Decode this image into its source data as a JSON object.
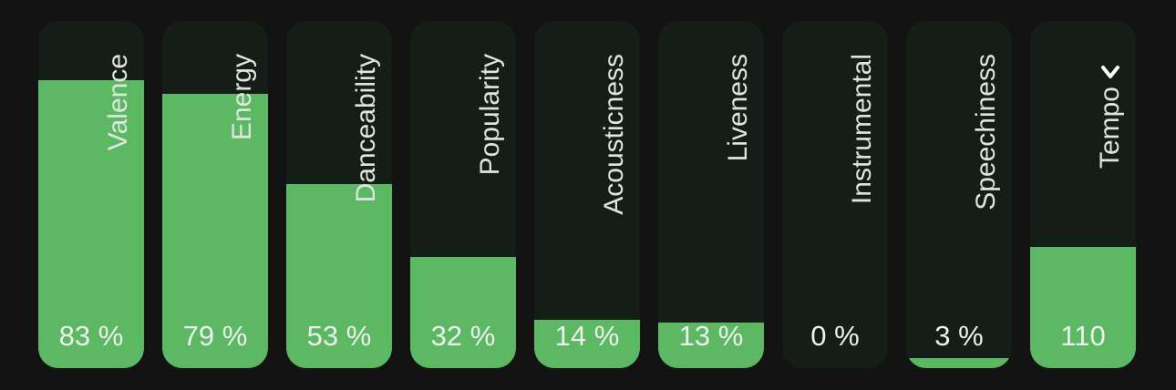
{
  "colors": {
    "page_background": "#131313",
    "bar_track": "#141e16",
    "bar_fill": "#5cb863",
    "label_text": "#dfe5e0",
    "value_text": "#ecf1ec"
  },
  "features": [
    {
      "label": "Valence",
      "value": "83 %",
      "level": 0.83
    },
    {
      "label": "Energy",
      "value": "79 %",
      "level": 0.79
    },
    {
      "label": "Danceability",
      "value": "53 %",
      "level": 0.53
    },
    {
      "label": "Popularity",
      "value": "32 %",
      "level": 0.32
    },
    {
      "label": "Acousticness",
      "value": "14 %",
      "level": 0.14
    },
    {
      "label": "Liveness",
      "value": "13 %",
      "level": 0.13
    },
    {
      "label": "Instrumental",
      "value": "0 %",
      "level": 0.0
    },
    {
      "label": "Speechiness",
      "value": "3 %",
      "level": 0.03
    },
    {
      "label": "Tempo",
      "value": "110",
      "level": 0.35,
      "icon": "chevron-down-icon"
    }
  ]
}
